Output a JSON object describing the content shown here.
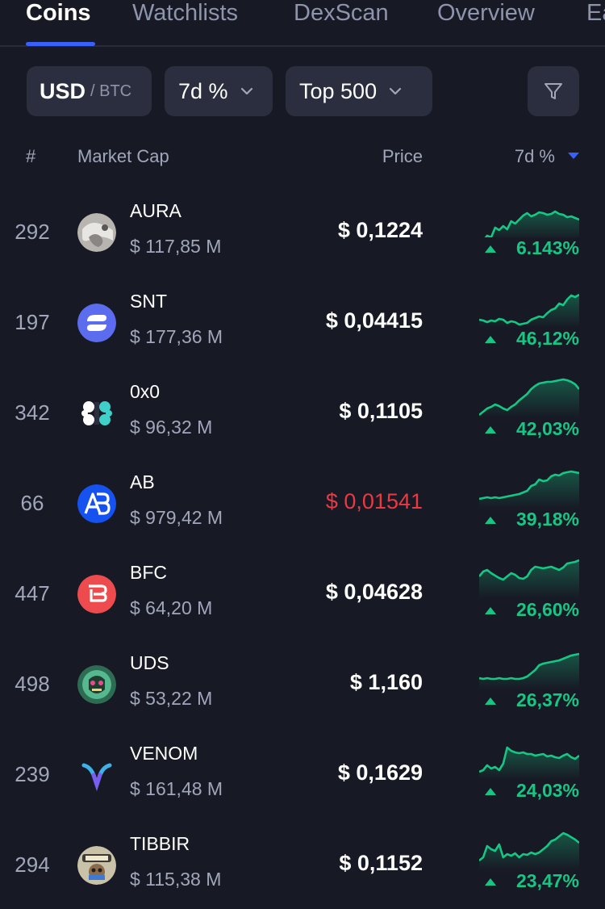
{
  "tabs": [
    "Coins",
    "Watchlists",
    "DexScan",
    "Overview",
    "Ea"
  ],
  "filters": {
    "currency_main": "USD",
    "currency_alt": "/ BTC",
    "period": "7d %",
    "top": "Top 500"
  },
  "headers": {
    "rank": "#",
    "market_cap": "Market Cap",
    "price": "Price",
    "change": "7d %"
  },
  "colors": {
    "background": "#171924",
    "accent": "#3861fb",
    "positive": "#16c784",
    "negative": "#ea3943"
  },
  "coins": [
    {
      "rank": "292",
      "symbol": "AURA",
      "market_cap": "$ 117,85 M",
      "price": "$ 0,1224",
      "change": "6.143%",
      "price_direction": "up",
      "logo": "aura-logo",
      "sparkline": [
        52,
        54,
        48,
        50,
        38,
        41,
        36,
        40,
        30,
        33,
        28,
        23,
        20,
        24,
        22,
        19,
        20,
        22,
        21,
        18,
        21,
        22,
        25,
        24,
        26,
        28
      ]
    },
    {
      "rank": "197",
      "symbol": "SNT",
      "market_cap": "$ 177,36 M",
      "price": "$ 0,04415",
      "change": "46,12%",
      "price_direction": "up",
      "logo": "snt-logo",
      "sparkline": [
        40,
        41,
        43,
        41,
        42,
        39,
        40,
        44,
        42,
        43,
        46,
        45,
        44,
        40,
        38,
        36,
        37,
        32,
        28,
        26,
        20,
        22,
        15,
        10,
        12,
        9
      ]
    },
    {
      "rank": "342",
      "symbol": "0x0",
      "market_cap": "$ 96,32 M",
      "price": "$ 0,1105",
      "change": "42,03%",
      "price_direction": "up",
      "logo": "0x0-logo",
      "sparkline": [
        46,
        42,
        38,
        36,
        33,
        35,
        38,
        40,
        36,
        33,
        28,
        24,
        20,
        14,
        10,
        7,
        6,
        5,
        5,
        4,
        3,
        2,
        3,
        5,
        8,
        14
      ]
    },
    {
      "rank": "66",
      "symbol": "AB",
      "market_cap": "$ 979,42 M",
      "price": "$ 0,01541",
      "change": "39,18%",
      "price_direction": "down",
      "logo": "ab-logo",
      "sparkline": [
        38,
        37,
        36,
        37,
        36,
        37,
        36,
        35,
        34,
        33,
        32,
        30,
        28,
        22,
        20,
        14,
        16,
        15,
        10,
        8,
        9,
        6,
        5,
        4,
        5,
        6
      ]
    },
    {
      "rank": "447",
      "symbol": "BFC",
      "market_cap": "$ 64,20 M",
      "price": "$ 0,04628",
      "change": "26,60%",
      "price_direction": "up",
      "logo": "bfc-logo",
      "sparkline": [
        22,
        16,
        14,
        18,
        21,
        24,
        26,
        22,
        18,
        20,
        24,
        25,
        22,
        14,
        10,
        11,
        12,
        11,
        10,
        12,
        14,
        11,
        6,
        5,
        4,
        2
      ]
    },
    {
      "rank": "498",
      "symbol": "UDS",
      "market_cap": "$ 53,22 M",
      "price": "$ 1,160",
      "change": "26,37%",
      "price_direction": "up",
      "logo": "uds-logo",
      "sparkline": [
        36,
        37,
        36,
        37,
        37,
        36,
        37,
        37,
        36,
        37,
        37,
        36,
        34,
        30,
        26,
        20,
        18,
        17,
        16,
        15,
        14,
        12,
        10,
        8,
        7,
        6
      ]
    },
    {
      "rank": "239",
      "symbol": "VENOM",
      "market_cap": "$ 161,48 M",
      "price": "$ 0,1629",
      "change": "24,03%",
      "price_direction": "up",
      "logo": "venom-logo",
      "sparkline": [
        40,
        38,
        32,
        36,
        34,
        38,
        30,
        10,
        14,
        16,
        17,
        16,
        18,
        18,
        20,
        19,
        18,
        21,
        20,
        22,
        23,
        20,
        18,
        22,
        24,
        20
      ]
    },
    {
      "rank": "294",
      "symbol": "TIBBIR",
      "market_cap": "$ 115,38 M",
      "price": "$ 0,1152",
      "change": "23,47%",
      "price_direction": "up",
      "logo": "tibbir-logo",
      "sparkline": [
        38,
        34,
        20,
        24,
        26,
        18,
        34,
        30,
        32,
        29,
        34,
        30,
        31,
        28,
        30,
        28,
        24,
        20,
        14,
        12,
        8,
        4,
        6,
        9,
        12,
        16
      ]
    }
  ]
}
